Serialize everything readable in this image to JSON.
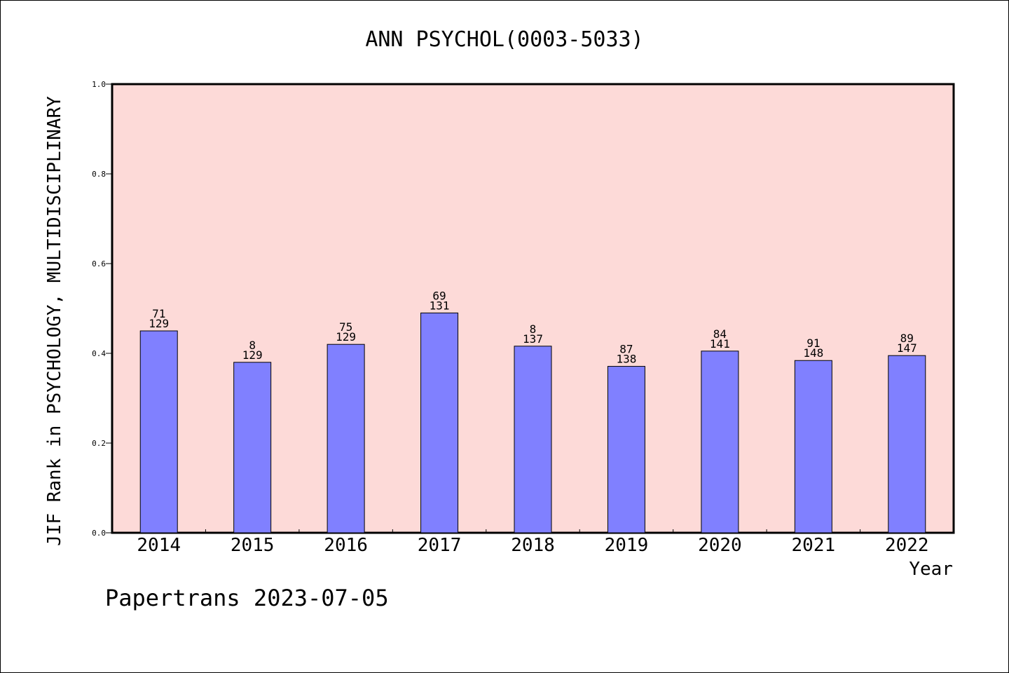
{
  "chart_data": {
    "type": "bar",
    "title": "ANN PSYCHOL(0003-5033)",
    "xlabel": "Year",
    "ylabel": "JIF Rank in PSYCHOLOGY, MULTIDISCIPLINARY",
    "ylim": [
      0,
      1
    ],
    "yticks": [
      "0.0",
      "0.2",
      "0.4",
      "0.6",
      "0.8",
      "1.0"
    ],
    "categories": [
      "2014",
      "2015",
      "2016",
      "2017",
      "2018",
      "2019",
      "2020",
      "2021",
      "2022"
    ],
    "values": [
      0.45,
      0.38,
      0.42,
      0.49,
      0.416,
      0.371,
      0.405,
      0.384,
      0.395
    ],
    "rank_labels": [
      {
        "rank": "71",
        "total": "129"
      },
      {
        "rank": "8",
        "total": "129"
      },
      {
        "rank": "75",
        "total": "129"
      },
      {
        "rank": "69",
        "total": "131"
      },
      {
        "rank": "8",
        "total": "137"
      },
      {
        "rank": "87",
        "total": "138"
      },
      {
        "rank": "84",
        "total": "141"
      },
      {
        "rank": "91",
        "total": "148"
      },
      {
        "rank": "89",
        "total": "147"
      }
    ],
    "grid": false,
    "colors": {
      "plot_background": "#fddad8",
      "bar_fill": "#8080ff",
      "bar_stroke": "#000000"
    }
  },
  "footer": {
    "text": "Papertrans 2023-07-05"
  }
}
